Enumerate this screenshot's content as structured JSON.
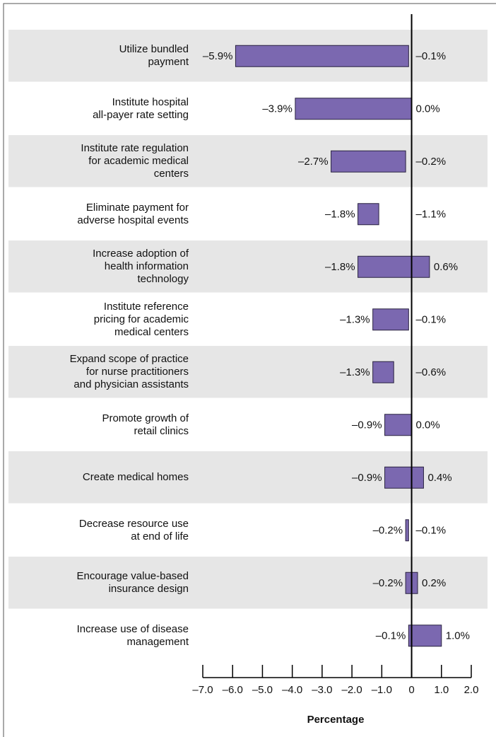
{
  "chart_data": {
    "type": "range_bar",
    "categories": [
      "Utilize bundled\npayment",
      "Institute hospital\nall-payer rate setting",
      "Institute rate regulation\nfor academic medical\ncenters",
      "Eliminate payment for\nadverse hospital events",
      "Increase adoption of\nhealth information\ntechnology",
      "Institute reference\npricing for academic\nmedical centers",
      "Expand scope of practice\nfor nurse practitioners\nand physician assistants",
      "Promote growth of\nretail clinics",
      "Create medical homes",
      "Decrease resource use\nat end of life",
      "Encourage value-based\ninsurance design",
      "Increase use of disease\nmanagement"
    ],
    "series": [
      {
        "values": [
          -5.9,
          -3.9,
          -2.7,
          -1.8,
          -1.8,
          -1.3,
          -1.3,
          -0.9,
          -0.9,
          -0.2,
          -0.2,
          -0.1
        ],
        "value_labels": [
          "–5.9%",
          "–3.9%",
          "–2.7%",
          "–1.8%",
          "–1.8%",
          "–1.3%",
          "–1.3%",
          "–0.9%",
          "–0.9%",
          "–0.2%",
          "–0.2%",
          "–0.1%"
        ]
      },
      {
        "values": [
          -0.1,
          0.0,
          -0.2,
          -1.1,
          0.6,
          -0.1,
          -0.6,
          0.0,
          0.4,
          -0.1,
          0.2,
          1.0
        ],
        "value_labels": [
          "–0.1%",
          "0.0%",
          "–0.2%",
          "–1.1%",
          "0.6%",
          "–0.1%",
          "–0.6%",
          "0.0%",
          "0.4%",
          "–0.1%",
          "0.2%",
          "1.0%"
        ]
      }
    ],
    "color": "#7b68b0",
    "xlabel": "Percentage",
    "xlim": [
      -7,
      2
    ],
    "xticks": [
      {
        "value": -7,
        "label": "–7.0"
      },
      {
        "value": -6,
        "label": "–6.0"
      },
      {
        "value": -5,
        "label": "–5.0"
      },
      {
        "value": -4,
        "label": "–4.0"
      },
      {
        "value": -3,
        "label": "–3.0"
      },
      {
        "value": -2,
        "label": "–2.0"
      },
      {
        "value": -1,
        "label": "–1.0"
      },
      0,
      {
        "value": 1,
        "label": "1.0"
      },
      {
        "value": 2,
        "label": "2.0"
      }
    ]
  }
}
